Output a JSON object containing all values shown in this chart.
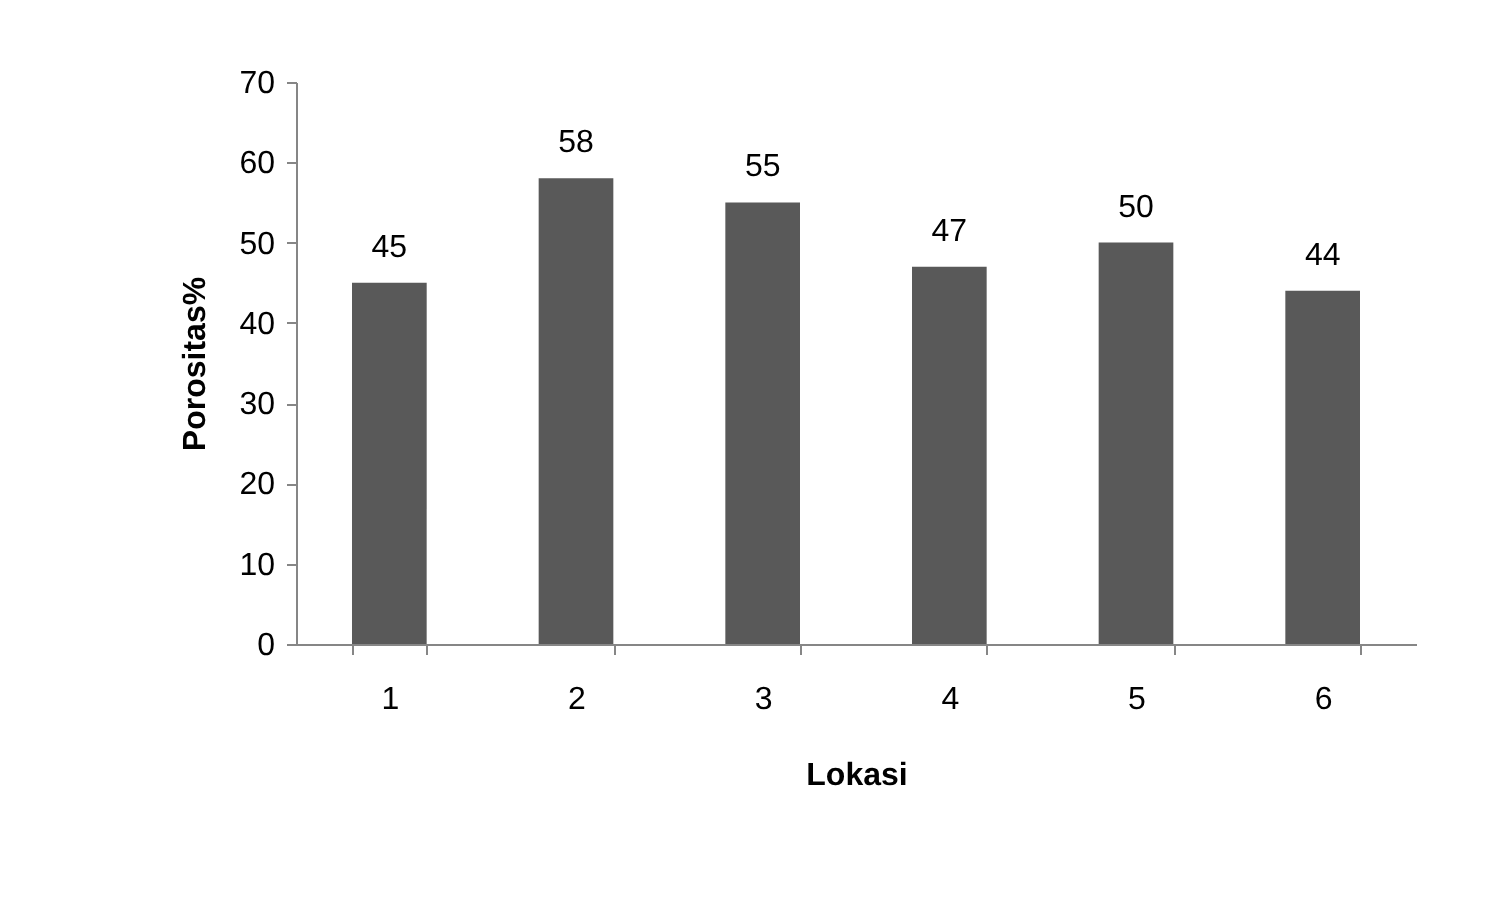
{
  "chart_data": {
    "type": "bar",
    "xlabel": "Lokasi",
    "ylabel": "Porositas%",
    "categories": [
      "1",
      "2",
      "3",
      "4",
      "5",
      "6"
    ],
    "values": [
      45,
      58,
      55,
      47,
      50,
      44
    ],
    "color": "#595959",
    "ylim": [
      0,
      70
    ],
    "yticks": [
      0,
      10,
      20,
      30,
      40,
      50,
      60,
      70
    ],
    "grid": false,
    "data_labels": true
  }
}
